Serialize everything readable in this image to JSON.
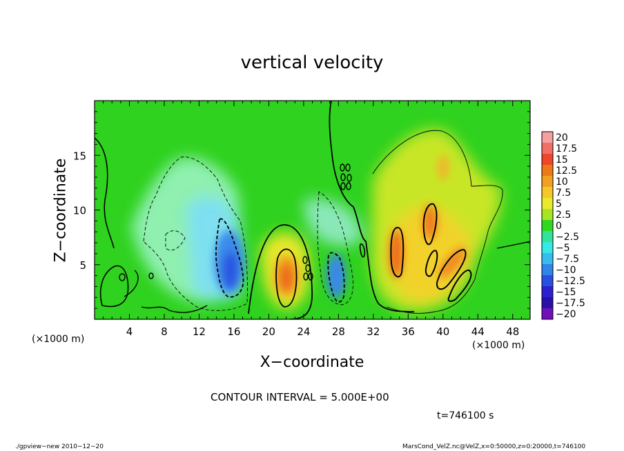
{
  "chart_data": {
    "type": "heatmap",
    "title": "vertical velocity",
    "xlabel": "X−coordinate",
    "ylabel": "Z−coordinate",
    "x_unit": "(×1000 m)",
    "z_unit": "(×1000 m)",
    "xlim": [
      0,
      50
    ],
    "ylim": [
      0,
      20
    ],
    "x_ticks": [
      4,
      8,
      12,
      16,
      20,
      24,
      28,
      32,
      36,
      40,
      44,
      48
    ],
    "y_ticks": [
      5,
      10,
      15
    ],
    "colorbar": {
      "labels": [
        "20",
        "17.5",
        "15",
        "12.5",
        "10",
        "7.5",
        "5",
        "2.5",
        "0",
        "−2.5",
        "−5",
        "−7.5",
        "−10",
        "−12.5",
        "−15",
        "−17.5",
        "−20"
      ],
      "colors": [
        "#f4a0a0",
        "#f07068",
        "#ee4628",
        "#ec7818",
        "#f2a020",
        "#f4c82a",
        "#eaea2c",
        "#a8e424",
        "#30d820",
        "#30e49a",
        "#36e8e6",
        "#38bcee",
        "#3086e8",
        "#2a50e2",
        "#2c20d0",
        "#2a10a8",
        "#7010b8"
      ]
    },
    "contour_interval": "CONTOUR INTERVAL = 5.000E+00",
    "features": [
      {
        "x": 15.5,
        "z": 4.5,
        "value": -11,
        "kind": "downdraft"
      },
      {
        "x": 10.0,
        "z": 10.0,
        "value": -6,
        "kind": "downdraft"
      },
      {
        "x": 28.0,
        "z": 4.0,
        "value": -10,
        "kind": "downdraft"
      },
      {
        "x": 22.0,
        "z": 3.5,
        "value": 13,
        "kind": "updraft"
      },
      {
        "x": 34.5,
        "z": 6.0,
        "value": 12,
        "kind": "updraft"
      },
      {
        "x": 38.5,
        "z": 9.0,
        "value": 11,
        "kind": "updraft"
      },
      {
        "x": 41.0,
        "z": 5.0,
        "value": 9,
        "kind": "updraft"
      },
      {
        "x": 38.0,
        "z": 13.0,
        "value": 4,
        "kind": "updraft"
      }
    ]
  },
  "annotations": {
    "time": "t=746100 s",
    "footer_left": "./gpview−new   2010−12−20",
    "footer_right": "MarsCond_VelZ.nc@VelZ,x=0:50000,z=0:20000,t=746100"
  }
}
